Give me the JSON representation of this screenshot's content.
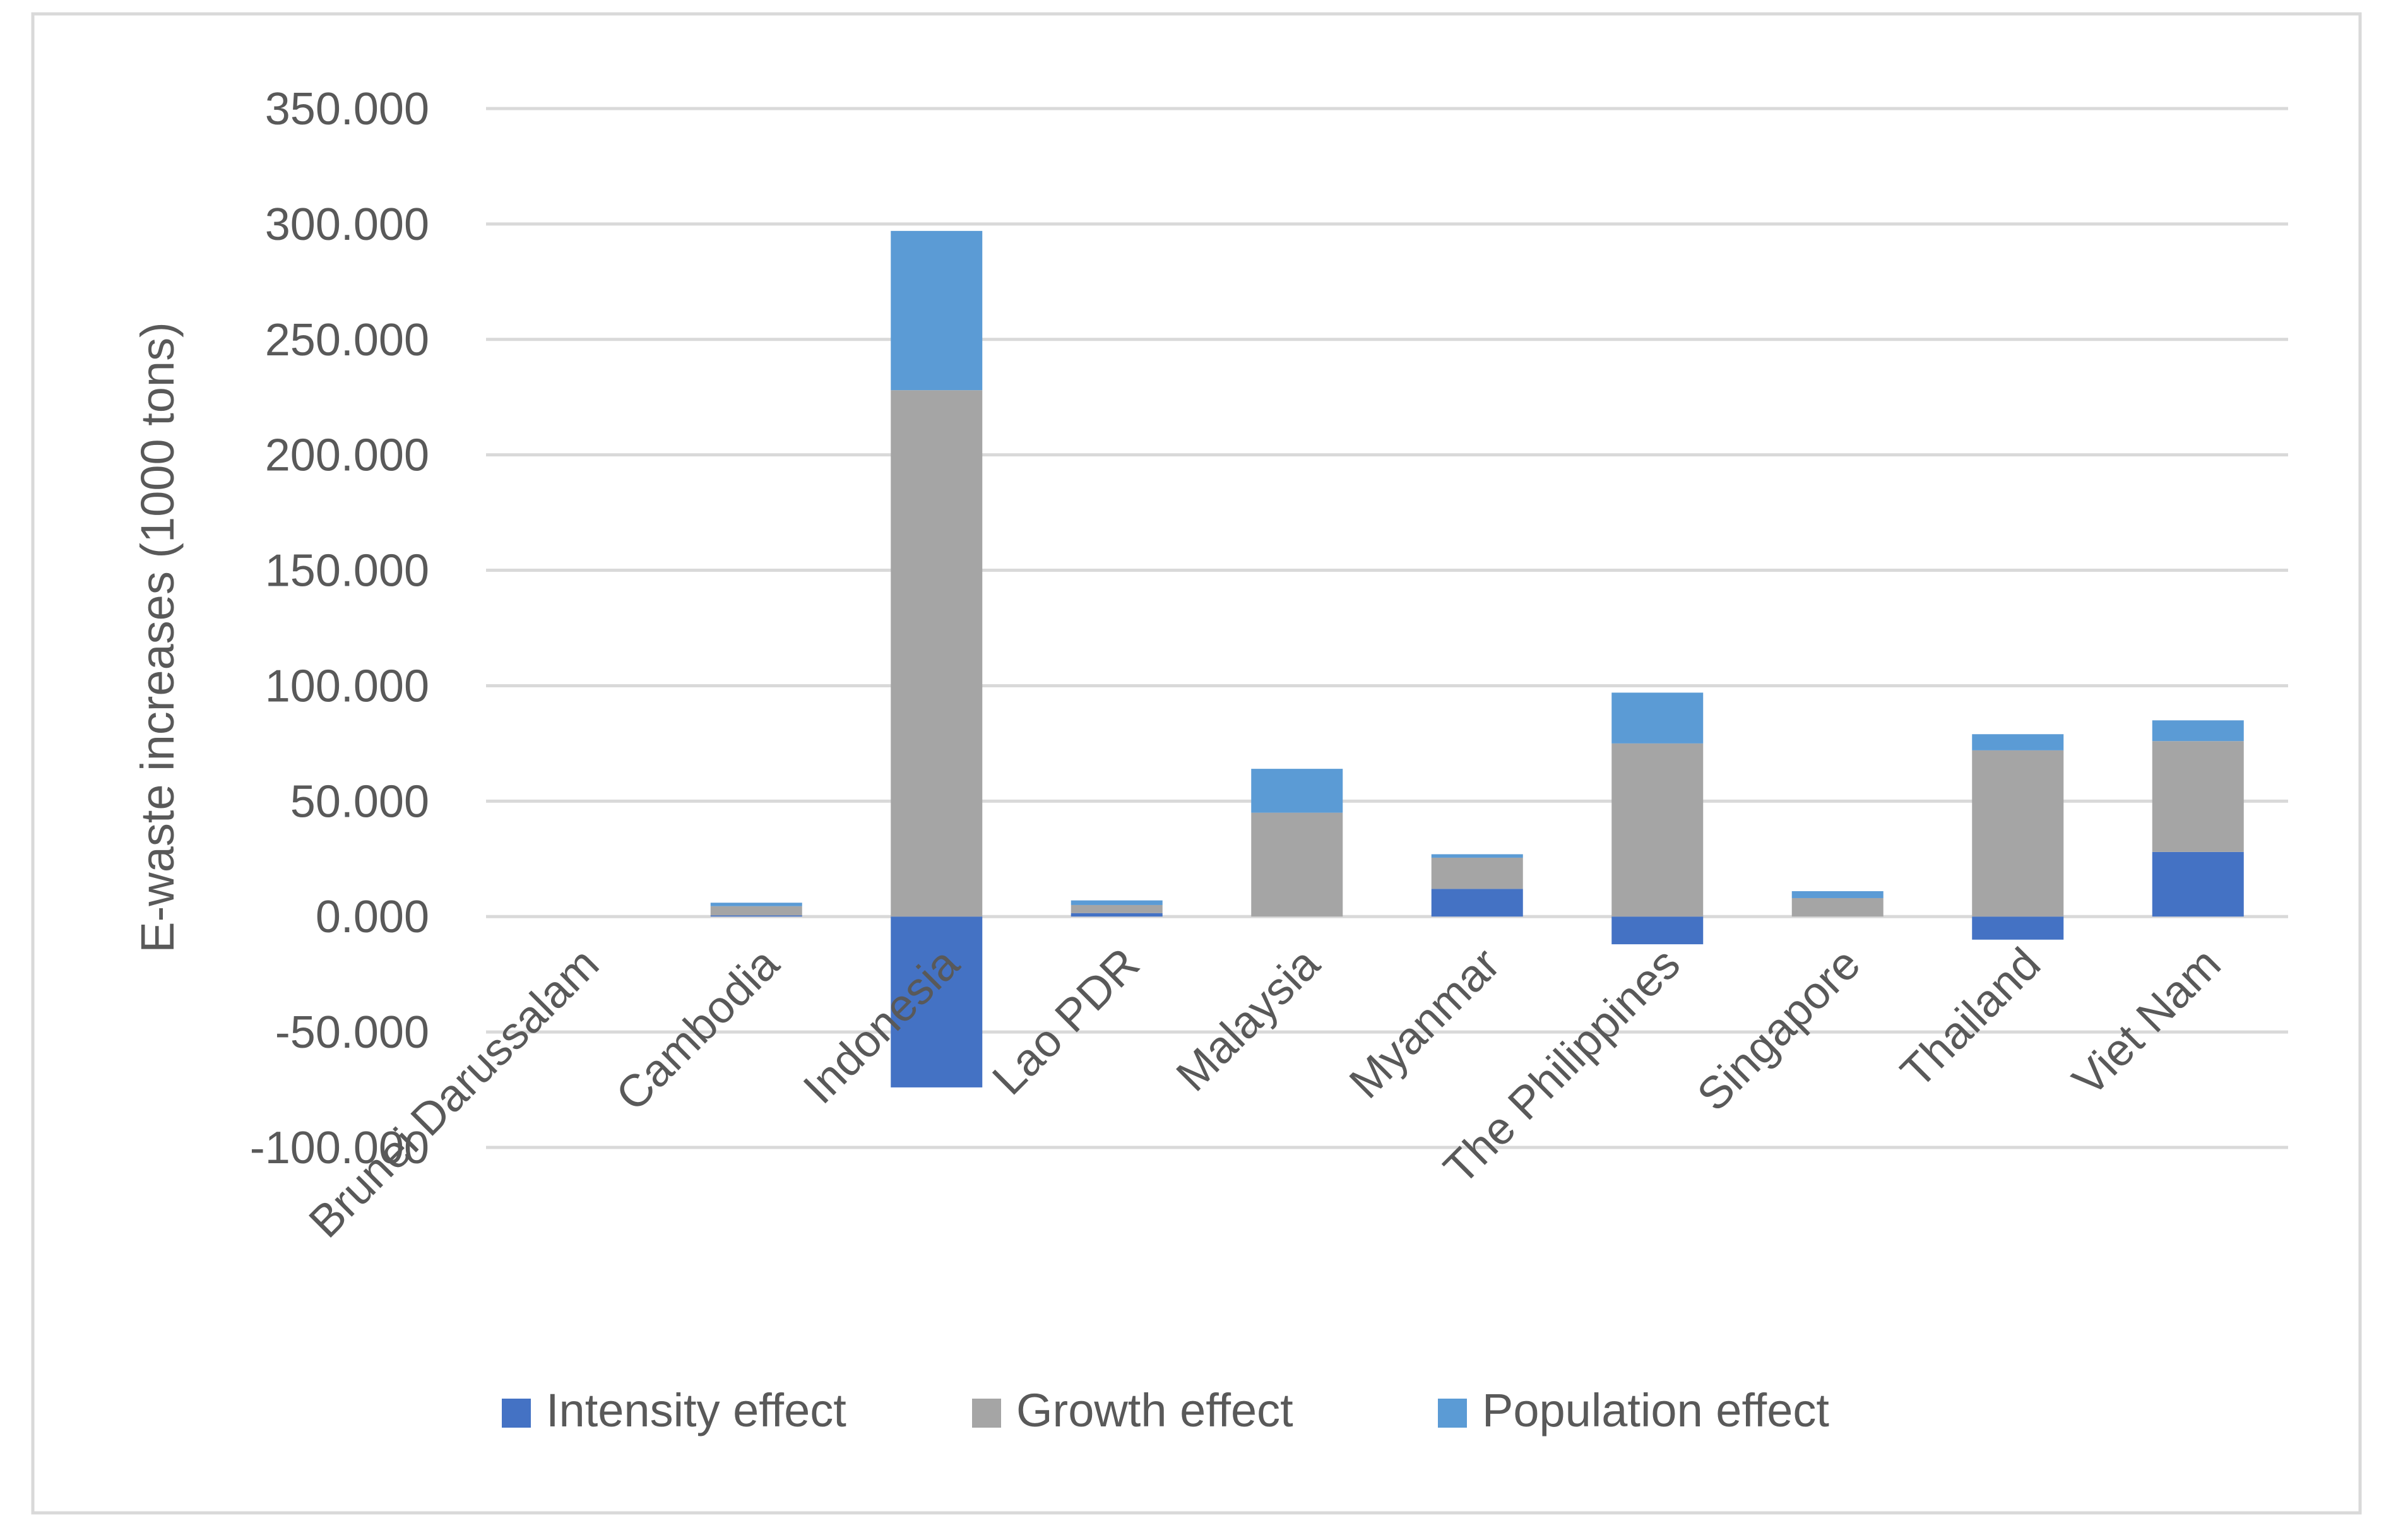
{
  "chart_data": {
    "type": "bar",
    "stacked": true,
    "title": "",
    "xlabel": "",
    "ylabel": "E-waste increases (1000 tons)",
    "ylim": [
      -100,
      350
    ],
    "ytick_step": 50,
    "ytick_labels": [
      "-100.000",
      "-50.000",
      "0.000",
      "50.000",
      "100.000",
      "150.000",
      "200.000",
      "250.000",
      "300.000",
      "350.000"
    ],
    "grid": true,
    "legend_position": "bottom",
    "categories": [
      "Brunei Darussalam",
      "Cambodia",
      "Indonesia",
      "Lao PDR",
      "Malaysia",
      "Myanmar",
      "The Philippines",
      "Singapore",
      "Thailand",
      "Viet Nam"
    ],
    "series": [
      {
        "name": "Intensity effect",
        "color": "#4472C4",
        "values": [
          0,
          0.5,
          -74,
          1.5,
          0,
          12,
          -12,
          0,
          -10,
          28
        ]
      },
      {
        "name": "Growth effect",
        "color": "#A5A5A5",
        "values": [
          0,
          4,
          228,
          3.5,
          45,
          13.5,
          75,
          8,
          72,
          48
        ]
      },
      {
        "name": "Population effect",
        "color": "#5B9BD5",
        "values": [
          0,
          1.5,
          69,
          2,
          19,
          1.5,
          22,
          3,
          7,
          9
        ]
      }
    ]
  }
}
